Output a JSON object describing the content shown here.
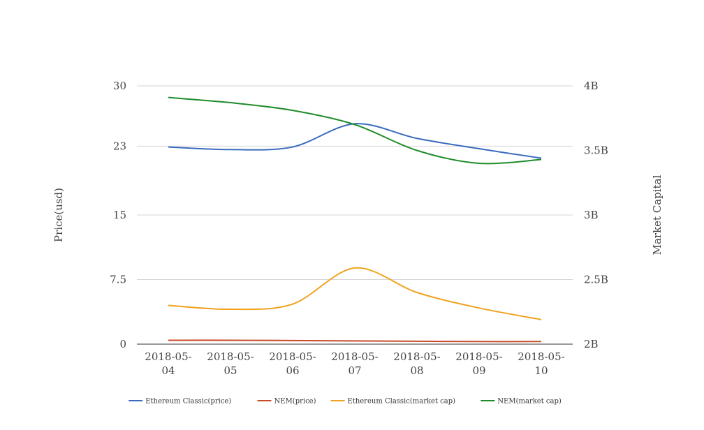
{
  "chart_data": {
    "type": "line",
    "categories": [
      "2018-05-04",
      "2018-05-05",
      "2018-05-06",
      "2018-05-07",
      "2018-05-08",
      "2018-05-09",
      "2018-05-10"
    ],
    "category_lines": [
      [
        "2018-05-",
        "04"
      ],
      [
        "2018-05-",
        "05"
      ],
      [
        "2018-05-",
        "06"
      ],
      [
        "2018-05-",
        "07"
      ],
      [
        "2018-05-",
        "08"
      ],
      [
        "2018-05-",
        "09"
      ],
      [
        "2018-05-",
        "10"
      ]
    ],
    "y_left": {
      "label": "Price(usd)",
      "ticks": [
        0,
        7.5,
        15,
        23,
        30
      ],
      "tick_labels": [
        "0",
        "7.5",
        "15",
        "23",
        "30"
      ],
      "range": [
        0,
        30
      ]
    },
    "y_right": {
      "label": "Market Capital",
      "ticks": [
        2000000000,
        2500000000,
        3000000000,
        3500000000,
        4000000000
      ],
      "tick_labels": [
        "2B",
        "2.5B",
        "3B",
        "3.5B",
        "4B"
      ],
      "range": [
        2000000000,
        4000000000
      ]
    },
    "grid": true,
    "legend_position": "bottom",
    "series": [
      {
        "name": "Ethereum Classic(price)",
        "axis": "left",
        "color": "#3b6bbf",
        "values": [
          22.9,
          22.6,
          22.9,
          25.6,
          23.9,
          22.7,
          21.6
        ]
      },
      {
        "name": "NEM(price)",
        "axis": "right",
        "color": "#c84b2a",
        "values": [
          2030000000,
          2030000000,
          2028000000,
          2025000000,
          2022000000,
          2020000000,
          2020000000
        ]
      },
      {
        "name": "Ethereum Classic(market cap)",
        "axis": "right",
        "color": "#f0a21e",
        "values": [
          2300000000,
          2270000000,
          2310000000,
          2590000000,
          2400000000,
          2280000000,
          2190000000
        ]
      },
      {
        "name": "NEM(market cap)",
        "axis": "right",
        "color": "#1e8c2a",
        "values": [
          3910000000,
          3870000000,
          3810000000,
          3700000000,
          3500000000,
          3400000000,
          3430000000
        ]
      }
    ]
  }
}
